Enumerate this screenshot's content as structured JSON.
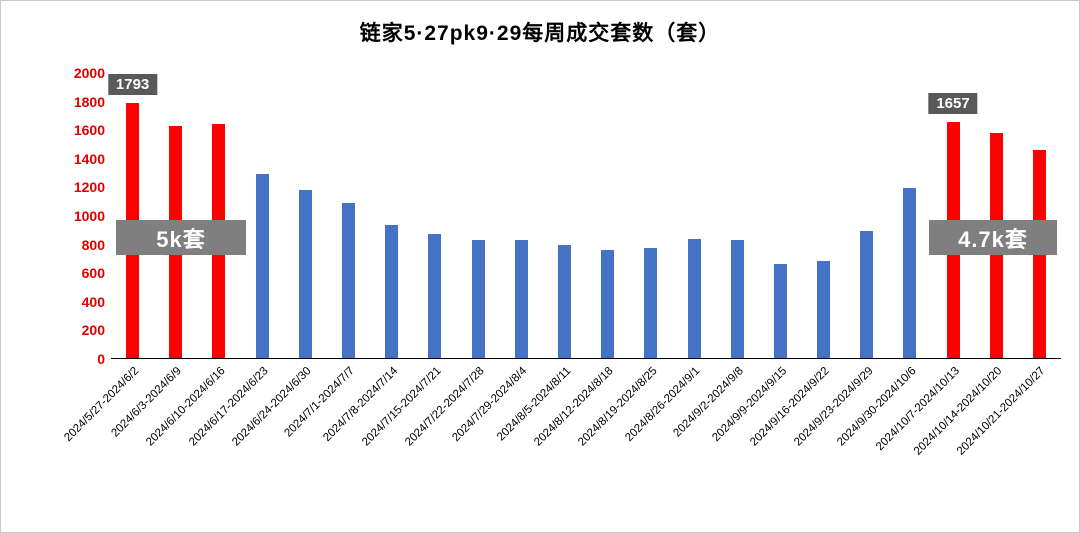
{
  "chart_data": {
    "type": "bar",
    "title": "链家5·27pk9·29每周成交套数（套）",
    "xlabel": "",
    "ylabel": "",
    "ylim": [
      0,
      2000
    ],
    "yticks": [
      0,
      200,
      400,
      600,
      800,
      1000,
      1200,
      1400,
      1600,
      1800,
      2000
    ],
    "grid": false,
    "legend": "none",
    "categories": [
      "2024/5/27-2024/6/2",
      "2024/6/3-2024/6/9",
      "2024/6/10-2024/6/16",
      "2024/6/17-2024/6/23",
      "2024/6/24-2024/6/30",
      "2024/7/1-2024/7/7",
      "2024/7/8-2024/7/14",
      "2024/7/15-2024/7/21",
      "2024/7/22-2024/7/28",
      "2024/7/29-2024/8/4",
      "2024/8/5-2024/8/11",
      "2024/8/12-2024/8/18",
      "2024/8/19-2024/8/25",
      "2024/8/26-2024/9/1",
      "2024/9/2-2024/9/8",
      "2024/9/9-2024/9/15",
      "2024/9/16-2024/9/22",
      "2024/9/23-2024/9/29",
      "2024/9/30-2024/10/6",
      "2024/10/7-2024/10/13",
      "2024/10/14-2024/10/20",
      "2024/10/21-2024/10/27"
    ],
    "values": [
      1793,
      1630,
      1640,
      1290,
      1180,
      1090,
      930,
      870,
      830,
      825,
      790,
      760,
      770,
      835,
      825,
      660,
      680,
      890,
      1190,
      1657,
      1580,
      1460
    ],
    "bar_colors": [
      "red",
      "red",
      "red",
      "blue",
      "blue",
      "blue",
      "blue",
      "blue",
      "blue",
      "blue",
      "blue",
      "blue",
      "blue",
      "blue",
      "blue",
      "blue",
      "blue",
      "blue",
      "blue",
      "red",
      "red",
      "red"
    ],
    "colors": {
      "red": "#ff0000",
      "blue": "#4472c4",
      "ytick": "#e00000",
      "value_label_bg": "#595959",
      "side_label_bg": "#7f7f7f"
    },
    "bar_labels": [
      {
        "index": 0,
        "text": "1793",
        "value": 1793
      },
      {
        "index": 19,
        "text": "1657",
        "value": 1657
      }
    ],
    "side_labels": [
      {
        "text": "5k套"
      },
      {
        "text": "4.7k套"
      }
    ]
  }
}
